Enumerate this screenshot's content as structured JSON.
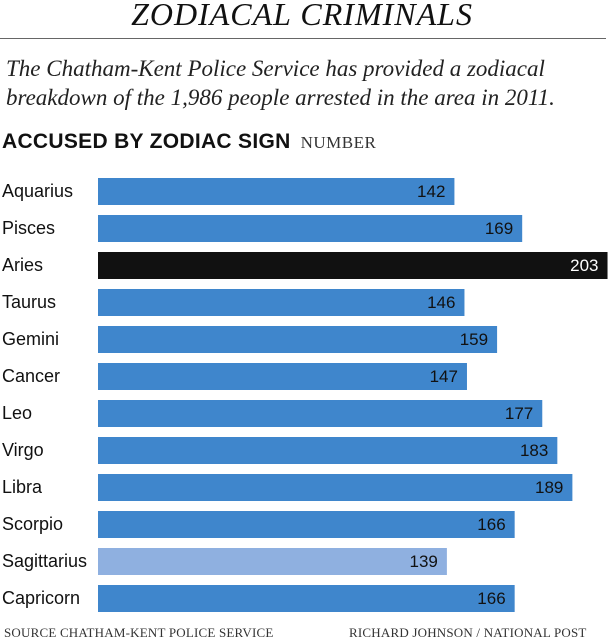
{
  "title": "ZODIACAL CRIMINALS",
  "subtitle_line1": "The Chatham-Kent Police Service has provided a zodiacal",
  "subtitle_line2": "breakdown of the 1,986 people arrested in the area in 2011.",
  "heading": "ACCUSED BY ZODIAC SIGN",
  "heading_unit": "NUMBER",
  "source": "SOURCE CHATHAM-KENT POLICE SERVICE",
  "credit": "RICHARD JOHNSON / NATIONAL POST",
  "colors": {
    "bar": "#3f86cc",
    "highlight": "#111111",
    "light": "#8fb0e0",
    "label_on_blue": "#111111",
    "label_on_dark": "#ffffff"
  },
  "chart_data": {
    "type": "bar",
    "orientation": "horizontal",
    "categories": [
      "Aquarius",
      "Pisces",
      "Aries",
      "Taurus",
      "Gemini",
      "Cancer",
      "Leo",
      "Virgo",
      "Libra",
      "Scorpio",
      "Sagittarius",
      "Capricorn"
    ],
    "values": [
      142,
      169,
      203,
      146,
      159,
      147,
      177,
      183,
      189,
      166,
      139,
      166
    ],
    "highlight": [
      "Aries"
    ],
    "light": [
      "Sagittarius"
    ],
    "title": "ACCUSED BY ZODIAC SIGN",
    "xlabel": "NUMBER",
    "grid": false,
    "legend": "none"
  }
}
